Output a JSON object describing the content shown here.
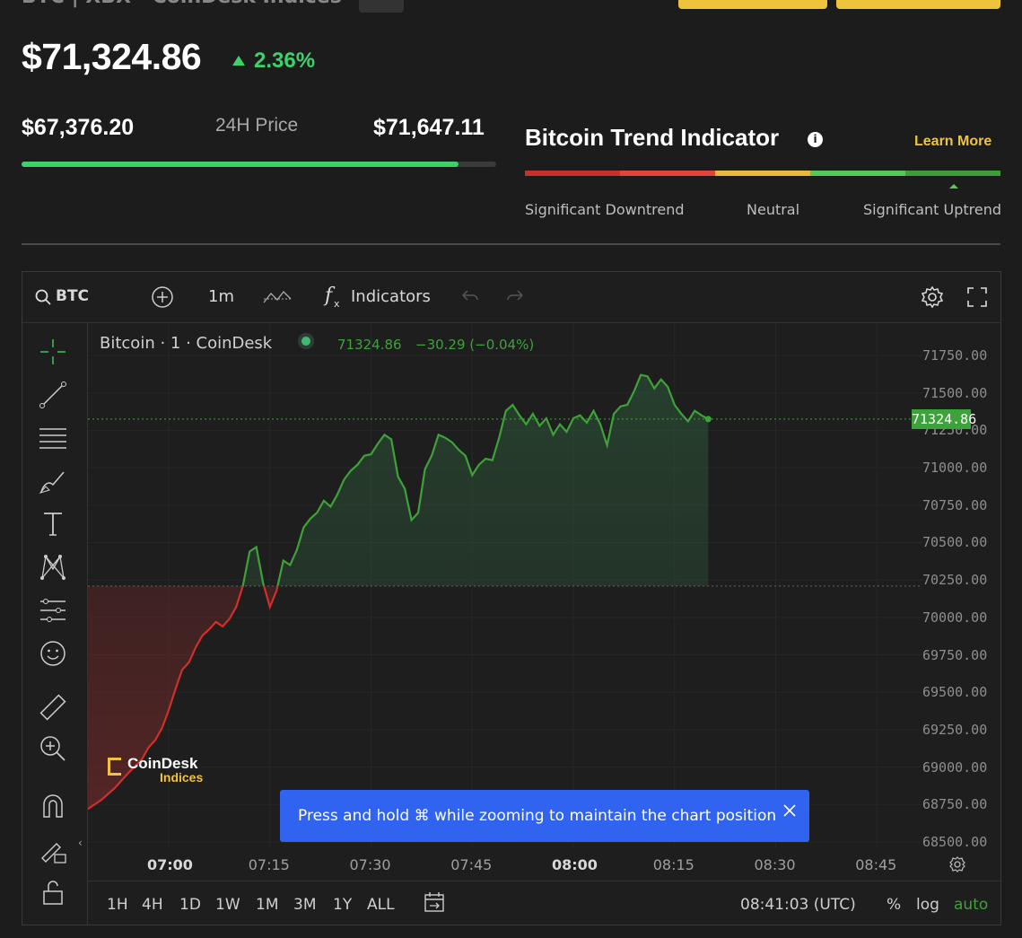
{
  "header": {
    "top_label_partial": "BTC | XBX · CoinDesk Indices"
  },
  "price": {
    "value": "$71,324.86",
    "change": "2.36%"
  },
  "range": {
    "low": "$67,376.20",
    "label": "24H Price",
    "high": "$71,647.11",
    "progress": 0.92
  },
  "trend": {
    "title": "Bitcoin Trend Indicator",
    "learn_more": "Learn More",
    "labels": [
      "Significant Downtrend",
      "Neutral",
      "Significant Uptrend"
    ],
    "colors": [
      "#c8302c",
      "#e0443a",
      "#e8b93c",
      "#55c85a",
      "#3f9c3a"
    ]
  },
  "toolbar": {
    "symbol": "BTC",
    "interval": "1m",
    "indicators": "Indicators"
  },
  "chart_info": {
    "name": "Bitcoin · 1 · CoinDesk",
    "last": "71324.86",
    "change": "−30.29 (−0.04%)",
    "badge": "71324.86"
  },
  "watermark": {
    "line1": "CoinDesk",
    "line2": "Indices"
  },
  "toast": {
    "text": "Press and hold ⌘ while zooming to maintain the chart position"
  },
  "timeframes": [
    "1H",
    "4H",
    "1D",
    "1W",
    "1M",
    "3M",
    "1Y",
    "ALL"
  ],
  "footer": {
    "clock": "08:41:03 (UTC)",
    "pct": "%",
    "log": "log",
    "auto": "auto"
  },
  "chart_data": {
    "type": "line",
    "title": "Bitcoin · 1 · CoinDesk",
    "y_ticks": [
      71750,
      71500,
      71250,
      71000,
      70750,
      70500,
      70250,
      70000,
      69750,
      69500,
      69250,
      69000,
      68750,
      68500
    ],
    "x_ticks": [
      "07:00",
      "07:15",
      "07:30",
      "07:45",
      "08:00",
      "08:15",
      "08:30",
      "08:45"
    ],
    "x_tick_minutes": [
      0,
      15,
      30,
      45,
      60,
      75,
      90,
      105
    ],
    "baseline": 70210,
    "last": 71324.86,
    "series": [
      {
        "values": [
          [
            -12,
            68720
          ],
          [
            -10,
            68780
          ],
          [
            -8,
            68860
          ],
          [
            -6,
            68960
          ],
          [
            -4,
            69050
          ],
          [
            -3,
            69130
          ],
          [
            -2,
            69180
          ],
          [
            -1,
            69260
          ],
          [
            0,
            69380
          ],
          [
            1,
            69520
          ],
          [
            2,
            69650
          ],
          [
            3,
            69700
          ],
          [
            4,
            69800
          ],
          [
            5,
            69880
          ],
          [
            6,
            69920
          ],
          [
            7,
            69970
          ],
          [
            8,
            69940
          ],
          [
            9,
            69990
          ],
          [
            10,
            70070
          ],
          [
            11,
            70210
          ],
          [
            12,
            70440
          ],
          [
            13,
            70470
          ],
          [
            14,
            70230
          ],
          [
            15,
            70070
          ],
          [
            16,
            70180
          ],
          [
            17,
            70380
          ],
          [
            18,
            70350
          ],
          [
            19,
            70450
          ],
          [
            20,
            70600
          ],
          [
            21,
            70660
          ],
          [
            22,
            70700
          ],
          [
            23,
            70780
          ],
          [
            24,
            70740
          ],
          [
            25,
            70820
          ],
          [
            26,
            70920
          ],
          [
            27,
            70980
          ],
          [
            28,
            71020
          ],
          [
            29,
            71080
          ],
          [
            30,
            71090
          ],
          [
            31,
            71160
          ],
          [
            32,
            71220
          ],
          [
            33,
            71190
          ],
          [
            34,
            70940
          ],
          [
            35,
            70860
          ],
          [
            36,
            70650
          ],
          [
            37,
            70700
          ],
          [
            38,
            70990
          ],
          [
            39,
            71080
          ],
          [
            40,
            71220
          ],
          [
            41,
            71200
          ],
          [
            42,
            71170
          ],
          [
            43,
            71120
          ],
          [
            44,
            71080
          ],
          [
            45,
            70950
          ],
          [
            46,
            71020
          ],
          [
            47,
            71060
          ],
          [
            48,
            71050
          ],
          [
            49,
            71200
          ],
          [
            50,
            71380
          ],
          [
            51,
            71420
          ],
          [
            52,
            71350
          ],
          [
            53,
            71290
          ],
          [
            54,
            71360
          ],
          [
            55,
            71280
          ],
          [
            56,
            71330
          ],
          [
            57,
            71220
          ],
          [
            58,
            71290
          ],
          [
            59,
            71240
          ],
          [
            60,
            71330
          ],
          [
            61,
            71350
          ],
          [
            62,
            71300
          ],
          [
            63,
            71380
          ],
          [
            64,
            71290
          ],
          [
            65,
            71150
          ],
          [
            66,
            71360
          ],
          [
            67,
            71410
          ],
          [
            68,
            71420
          ],
          [
            69,
            71510
          ],
          [
            70,
            71620
          ],
          [
            71,
            71610
          ],
          [
            72,
            71530
          ],
          [
            73,
            71590
          ],
          [
            74,
            71540
          ],
          [
            75,
            71420
          ],
          [
            76,
            71360
          ],
          [
            77,
            71310
          ],
          [
            78,
            71380
          ],
          [
            79,
            71350
          ],
          [
            80,
            71324.86
          ]
        ]
      }
    ]
  }
}
